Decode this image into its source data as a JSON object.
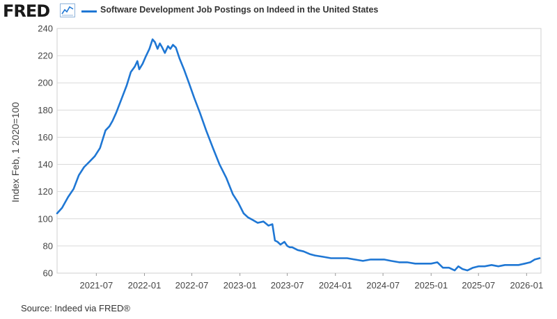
{
  "header": {
    "logo_text": "FRED",
    "logo_icon": "line-chart-icon"
  },
  "colors": {
    "series": "#1f77d4",
    "grid": "#d9d9d9",
    "axis_text": "#444444"
  },
  "footer": {
    "source": "Source: Indeed via FRED®"
  },
  "chart_data": {
    "type": "line",
    "title": "",
    "xlabel": "",
    "ylabel": "Index Feb, 1 2020=100",
    "ylim": [
      60,
      240
    ],
    "y_ticks": [
      60,
      80,
      100,
      120,
      140,
      160,
      180,
      200,
      220,
      240
    ],
    "x_range": [
      "2021-02-01",
      "2026-02-25"
    ],
    "x_ticks": [
      "2021-07",
      "2022-01",
      "2022-07",
      "2023-01",
      "2023-07",
      "2024-01",
      "2024-07",
      "2025-01",
      "2025-07",
      "2026-01"
    ],
    "grid": "horizontal",
    "legend": "top",
    "series": [
      {
        "name": "Software Development Job Postings on Indeed in the United States",
        "x": [
          "2021-02-01",
          "2021-02-20",
          "2021-03-15",
          "2021-04-05",
          "2021-04-25",
          "2021-05-15",
          "2021-06-05",
          "2021-06-25",
          "2021-07-15",
          "2021-08-05",
          "2021-08-20",
          "2021-09-01",
          "2021-09-15",
          "2021-10-05",
          "2021-10-25",
          "2021-11-10",
          "2021-11-25",
          "2021-12-05",
          "2021-12-12",
          "2021-12-25",
          "2022-01-05",
          "2022-01-20",
          "2022-02-01",
          "2022-02-10",
          "2022-02-20",
          "2022-03-01",
          "2022-03-10",
          "2022-03-20",
          "2022-04-01",
          "2022-04-10",
          "2022-04-20",
          "2022-05-01",
          "2022-05-15",
          "2022-06-01",
          "2022-06-20",
          "2022-07-10",
          "2022-08-01",
          "2022-08-25",
          "2022-09-20",
          "2022-10-15",
          "2022-11-10",
          "2022-12-05",
          "2022-12-25",
          "2023-01-15",
          "2023-02-01",
          "2023-02-20",
          "2023-03-10",
          "2023-04-01",
          "2023-04-20",
          "2023-05-05",
          "2023-05-15",
          "2023-05-25",
          "2023-06-05",
          "2023-06-20",
          "2023-07-01",
          "2023-07-10",
          "2023-07-20",
          "2023-08-10",
          "2023-09-01",
          "2023-09-25",
          "2023-10-15",
          "2023-11-15",
          "2023-12-15",
          "2024-01-15",
          "2024-02-15",
          "2024-03-15",
          "2024-04-15",
          "2024-05-15",
          "2024-06-10",
          "2024-07-05",
          "2024-08-01",
          "2024-09-01",
          "2024-10-01",
          "2024-11-01",
          "2024-12-01",
          "2025-01-01",
          "2025-01-25",
          "2025-02-15",
          "2025-03-10",
          "2025-04-01",
          "2025-04-15",
          "2025-05-01",
          "2025-05-20",
          "2025-06-10",
          "2025-07-01",
          "2025-07-25",
          "2025-08-20",
          "2025-09-15",
          "2025-10-10",
          "2025-11-05",
          "2025-12-01",
          "2025-12-25",
          "2026-01-15",
          "2026-02-01",
          "2026-02-20"
        ],
        "values": [
          104,
          108,
          116,
          122,
          132,
          138,
          142,
          146,
          152,
          165,
          168,
          172,
          178,
          188,
          198,
          208,
          212,
          216,
          210,
          214,
          219,
          225,
          232,
          230,
          225,
          229,
          226,
          222,
          227,
          225,
          228,
          226,
          218,
          210,
          200,
          189,
          178,
          165,
          152,
          140,
          130,
          118,
          112,
          104,
          101,
          99,
          97,
          98,
          95,
          96,
          84,
          83,
          81,
          83,
          80,
          79,
          79,
          77,
          76,
          74,
          73,
          72,
          71,
          71,
          71,
          70,
          69,
          70,
          70,
          70,
          69,
          68,
          68,
          67,
          67,
          67,
          68,
          64,
          64,
          62,
          65,
          63,
          62,
          64,
          65,
          65,
          66,
          65,
          66,
          66,
          66,
          67,
          68,
          70,
          71
        ]
      }
    ]
  }
}
